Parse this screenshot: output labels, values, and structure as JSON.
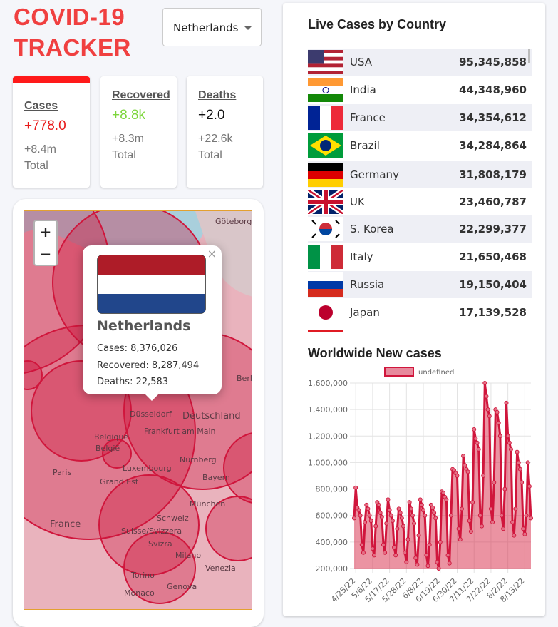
{
  "header": {
    "title": "COVID-19 TRACKER",
    "country_select": "Netherlands"
  },
  "stat_cards": [
    {
      "title": "Cases",
      "today": "+778.0",
      "total": "+8.4m",
      "total_label": "Total"
    },
    {
      "title": "Recovered",
      "today": "+8.8k",
      "total": "+8.3m",
      "total_label": "Total"
    },
    {
      "title": "Deaths",
      "today": "+2.0",
      "total": "+22.6k",
      "total_label": "Total"
    }
  ],
  "map": {
    "zoom_in": "+",
    "zoom_out": "−",
    "labels": [
      "Göteborg",
      "Berlin",
      "Düsseldorf",
      "Deutschland",
      "Belgique",
      "België",
      "Frankfurt am Main",
      "Luxembourg",
      "Nürnberg",
      "Paris",
      "Grand Est",
      "Bayern",
      "München",
      "France",
      "Schweiz",
      "Suisse/Svizzera",
      "Svizra",
      "Milano",
      "Venezia",
      "Torino",
      "Genova",
      "Monaco"
    ],
    "popup": {
      "close": "×",
      "country": "Netherlands",
      "lines": [
        "Cases: 8,376,026",
        "Recovered: 8,287,494",
        "Deaths: 22,583"
      ]
    }
  },
  "live_cases": {
    "title": "Live Cases by Country",
    "rows": [
      [
        "USA",
        "95,345,858"
      ],
      [
        "India",
        "44,348,960"
      ],
      [
        "France",
        "34,354,612"
      ],
      [
        "Brazil",
        "34,284,864"
      ],
      [
        "Germany",
        "31,808,179"
      ],
      [
        "UK",
        "23,460,787"
      ],
      [
        "S. Korea",
        "22,299,377"
      ],
      [
        "Italy",
        "21,650,468"
      ],
      [
        "Russia",
        "19,150,404"
      ],
      [
        "Japan",
        "17,139,528"
      ]
    ]
  },
  "chart_data": {
    "type": "line",
    "title": "Worldwide New cases",
    "categories": [
      null,
      "4/25/22",
      null,
      null,
      null,
      null,
      null,
      null,
      null,
      null,
      null,
      null,
      "5/6/22",
      null,
      null,
      null,
      null,
      null,
      null,
      null,
      null,
      null,
      null,
      "5/17/22",
      null,
      null,
      null,
      null,
      null,
      null,
      null,
      null,
      null,
      null,
      "5/28/22",
      null,
      null,
      null,
      null,
      null,
      null,
      null,
      null,
      null,
      null,
      "6/8/22",
      null,
      null,
      null,
      null,
      null,
      null,
      null,
      null,
      null,
      null,
      "6/19/22",
      null,
      null,
      null,
      null,
      null,
      null,
      null,
      null,
      null,
      null,
      "6/30/22",
      null,
      null,
      null,
      null,
      null,
      null,
      null,
      null,
      null,
      null,
      "7/11/22",
      null,
      null,
      null,
      null,
      null,
      null,
      null,
      null,
      null,
      null,
      "7/22/22",
      null,
      null,
      null,
      null,
      null,
      null,
      null,
      null,
      null,
      null,
      "8/2/22",
      null,
      null,
      null,
      null,
      null,
      null,
      null,
      null,
      null,
      null,
      "8/13/22",
      null,
      null,
      null,
      null
    ],
    "series": [
      {
        "name": "undefined",
        "color": "#d0163c",
        "values": [
          580000,
          810000,
          660000,
          640000,
          600000,
          380000,
          320000,
          550000,
          680000,
          650000,
          600000,
          560000,
          350000,
          300000,
          520000,
          700000,
          680000,
          620000,
          590000,
          380000,
          320000,
          540000,
          720000,
          640000,
          600000,
          560000,
          360000,
          300000,
          500000,
          650000,
          620000,
          580000,
          520000,
          320000,
          250000,
          420000,
          700000,
          650000,
          600000,
          540000,
          280000,
          230000,
          450000,
          720000,
          680000,
          640000,
          600000,
          300000,
          220000,
          380000,
          680000,
          660000,
          620000,
          580000,
          250000,
          200000,
          400000,
          780000,
          770000,
          740000,
          720000,
          300000,
          240000,
          600000,
          950000,
          940000,
          920000,
          900000,
          500000,
          420000,
          650000,
          1050000,
          980000,
          950000,
          930000,
          560000,
          480000,
          700000,
          1250000,
          1180000,
          1150000,
          1100000,
          600000,
          520000,
          900000,
          1600000,
          1500000,
          1400000,
          1350000,
          650000,
          550000,
          850000,
          1400000,
          1380000,
          1300000,
          1200000,
          600000,
          500000,
          800000,
          1450000,
          1200000,
          1150000,
          1100000,
          550000,
          450000,
          650000,
          1080000,
          1000000,
          950000,
          850000,
          500000,
          460000,
          600000,
          1000000,
          820000,
          580000
        ]
      }
    ],
    "ylim": [
      200000,
      1600000
    ],
    "yticks": [
      {
        "value": 200000,
        "label": "200,000"
      },
      {
        "value": 400000,
        "label": "400,000"
      },
      {
        "value": 600000,
        "label": "600,000"
      },
      {
        "value": 800000,
        "label": "800,000"
      },
      {
        "value": 1000000,
        "label": "1,000,000"
      },
      {
        "value": 1200000,
        "label": "1,200,000"
      },
      {
        "value": 1400000,
        "label": "1,400,000"
      },
      {
        "value": 1600000,
        "label": "1,600,000"
      }
    ],
    "grid": true
  }
}
